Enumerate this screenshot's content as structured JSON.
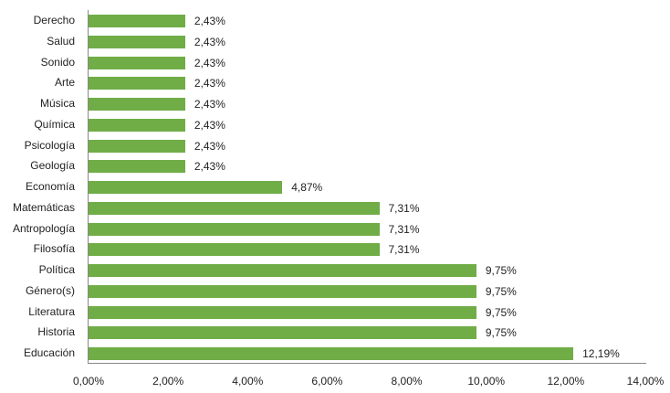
{
  "chart_data": {
    "type": "bar",
    "orientation": "horizontal",
    "title": "",
    "xlabel": "",
    "ylabel": "",
    "categories": [
      "Derecho",
      "Salud",
      "Sonido",
      "Arte",
      "Música",
      "Química",
      "Psicología",
      "Geología",
      "Economía",
      "Matemáticas",
      "Antropología",
      "Filosofía",
      "Política",
      "Género(s)",
      "Literatura",
      "Historia",
      "Educación"
    ],
    "values": [
      2.43,
      2.43,
      2.43,
      2.43,
      2.43,
      2.43,
      2.43,
      2.43,
      4.87,
      7.31,
      7.31,
      7.31,
      9.75,
      9.75,
      9.75,
      9.75,
      12.19
    ],
    "value_labels": [
      "2,43%",
      "2,43%",
      "2,43%",
      "2,43%",
      "2,43%",
      "2,43%",
      "2,43%",
      "2,43%",
      "4,87%",
      "7,31%",
      "7,31%",
      "7,31%",
      "9,75%",
      "9,75%",
      "9,75%",
      "9,75%",
      "12,19%"
    ],
    "xlim": [
      0,
      14
    ],
    "x_ticks": [
      "0,00%",
      "2,00%",
      "4,00%",
      "6,00%",
      "8,00%",
      "10,00%",
      "12,00%",
      "14,00%"
    ],
    "grid": false,
    "legend": null,
    "bar_color": "#70ad47"
  }
}
